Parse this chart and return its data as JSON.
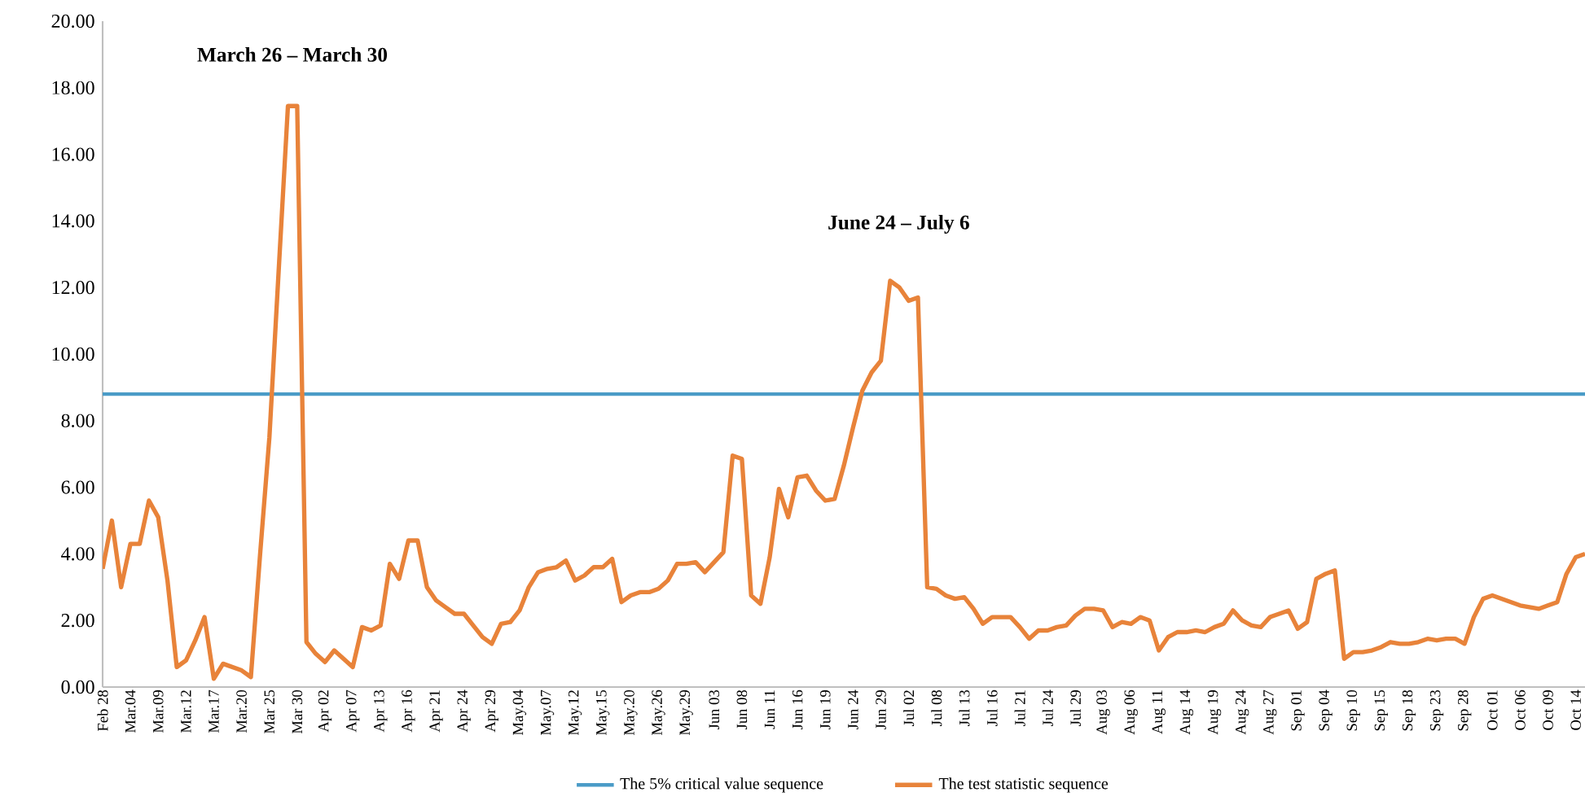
{
  "chart_data": {
    "type": "line",
    "categories": [
      "Feb 28",
      null,
      null,
      "Mar.04",
      null,
      null,
      "Mar.09",
      null,
      null,
      "Mar.12",
      null,
      null,
      "Mar.17",
      null,
      null,
      "Mar.20",
      null,
      null,
      "Mar 25",
      null,
      null,
      "Mar 30",
      null,
      null,
      "Apr 02",
      null,
      null,
      "Apr 07",
      null,
      null,
      "Apr 13",
      null,
      null,
      "Apr 16",
      null,
      null,
      "Apr 21",
      null,
      null,
      "Apr 24",
      null,
      null,
      "Apr 29",
      null,
      null,
      "May.04",
      null,
      null,
      "May.07",
      null,
      null,
      "May.12",
      null,
      null,
      "May.15",
      null,
      null,
      "May.20",
      null,
      null,
      "May.26",
      null,
      null,
      "May.29",
      null,
      null,
      "Jun 03",
      null,
      null,
      "Jun 08",
      null,
      null,
      "Jun 11",
      null,
      null,
      "Jun 16",
      null,
      null,
      "Jun 19",
      null,
      null,
      "Jun 24",
      null,
      null,
      "Jun 29",
      null,
      null,
      "Jul 02",
      null,
      null,
      "Jul 08",
      null,
      null,
      "Jul 13",
      null,
      null,
      "Jul 16",
      null,
      null,
      "Jul 21",
      null,
      null,
      "Jul 24",
      null,
      null,
      "Jul 29",
      null,
      null,
      "Aug 03",
      null,
      null,
      "Aug 06",
      null,
      null,
      "Aug 11",
      null,
      null,
      "Aug 14",
      null,
      null,
      "Aug 19",
      null,
      null,
      "Aug 24",
      null,
      null,
      "Aug 27",
      null,
      null,
      "Sep 01",
      null,
      null,
      "Sep 04",
      null,
      null,
      "Sep 10",
      null,
      null,
      "Sep 15",
      null,
      null,
      "Sep 18",
      null,
      null,
      "Sep 23",
      null,
      null,
      "Sep 28",
      null,
      null,
      "Oct 01",
      null,
      null,
      "Oct 06",
      null,
      null,
      "Oct 09",
      null,
      null,
      "Oct 14",
      null
    ],
    "series": [
      {
        "name": "The test statistic sequence",
        "color": "#e8833a",
        "values": [
          3.55,
          5.0,
          3.0,
          4.3,
          4.3,
          5.6,
          5.1,
          3.2,
          0.6,
          0.8,
          1.4,
          2.1,
          0.25,
          0.7,
          0.6,
          0.5,
          0.3,
          4.0,
          7.5,
          12.5,
          17.45,
          17.45,
          1.35,
          1.0,
          0.75,
          1.1,
          0.85,
          0.6,
          1.8,
          1.7,
          1.85,
          3.7,
          3.25,
          4.4,
          4.4,
          3.0,
          2.6,
          2.4,
          2.2,
          2.2,
          1.85,
          1.5,
          1.3,
          1.9,
          1.95,
          2.3,
          3.0,
          3.45,
          3.55,
          3.6,
          3.8,
          3.2,
          3.35,
          3.6,
          3.6,
          3.85,
          2.55,
          2.75,
          2.85,
          2.85,
          2.95,
          3.2,
          3.7,
          3.7,
          3.75,
          3.45,
          3.75,
          4.05,
          6.95,
          6.85,
          2.75,
          2.5,
          3.9,
          5.95,
          5.1,
          6.3,
          6.35,
          5.9,
          5.6,
          5.65,
          6.65,
          7.8,
          8.9,
          9.45,
          9.8,
          12.2,
          12.0,
          11.6,
          11.7,
          3.0,
          2.95,
          2.75,
          2.65,
          2.7,
          2.35,
          1.9,
          2.1,
          2.1,
          2.1,
          1.8,
          1.45,
          1.7,
          1.7,
          1.8,
          1.85,
          2.15,
          2.35,
          2.35,
          2.3,
          1.8,
          1.95,
          1.9,
          2.1,
          2.0,
          1.1,
          1.5,
          1.65,
          1.65,
          1.7,
          1.65,
          1.8,
          1.9,
          2.3,
          2.0,
          1.85,
          1.8,
          2.1,
          2.2,
          2.3,
          1.75,
          1.95,
          3.25,
          3.4,
          3.5,
          0.85,
          1.05,
          1.05,
          1.1,
          1.2,
          1.35,
          1.3,
          1.3,
          1.35,
          1.45,
          1.4,
          1.45,
          1.45,
          1.3,
          2.1,
          2.65,
          2.75,
          2.65,
          2.55,
          2.45,
          2.4,
          2.35,
          2.45,
          2.55,
          3.4,
          3.9,
          4.0
        ]
      }
    ],
    "ref_lines": [
      {
        "axis": "y",
        "value": 8.8,
        "label": "The 5% critical value sequence",
        "color": "#4a9bc7"
      }
    ],
    "annotations": [
      "March 26 – March 30",
      "June 24 – July 6"
    ],
    "ylim": [
      0,
      20
    ],
    "yticks": [
      {
        "value": 0,
        "label": "0.00"
      },
      {
        "value": 2,
        "label": "2.00"
      },
      {
        "value": 4,
        "label": "4.00"
      },
      {
        "value": 6,
        "label": "6.00"
      },
      {
        "value": 8,
        "label": "8.00"
      },
      {
        "value": 10,
        "label": "10.00"
      },
      {
        "value": 12,
        "label": "12.00"
      },
      {
        "value": 14,
        "label": "14.00"
      },
      {
        "value": 16,
        "label": "16.00"
      },
      {
        "value": 18,
        "label": "18.00"
      },
      {
        "value": 20,
        "label": "20.00"
      }
    ],
    "grid": false,
    "legend": "bottom"
  }
}
